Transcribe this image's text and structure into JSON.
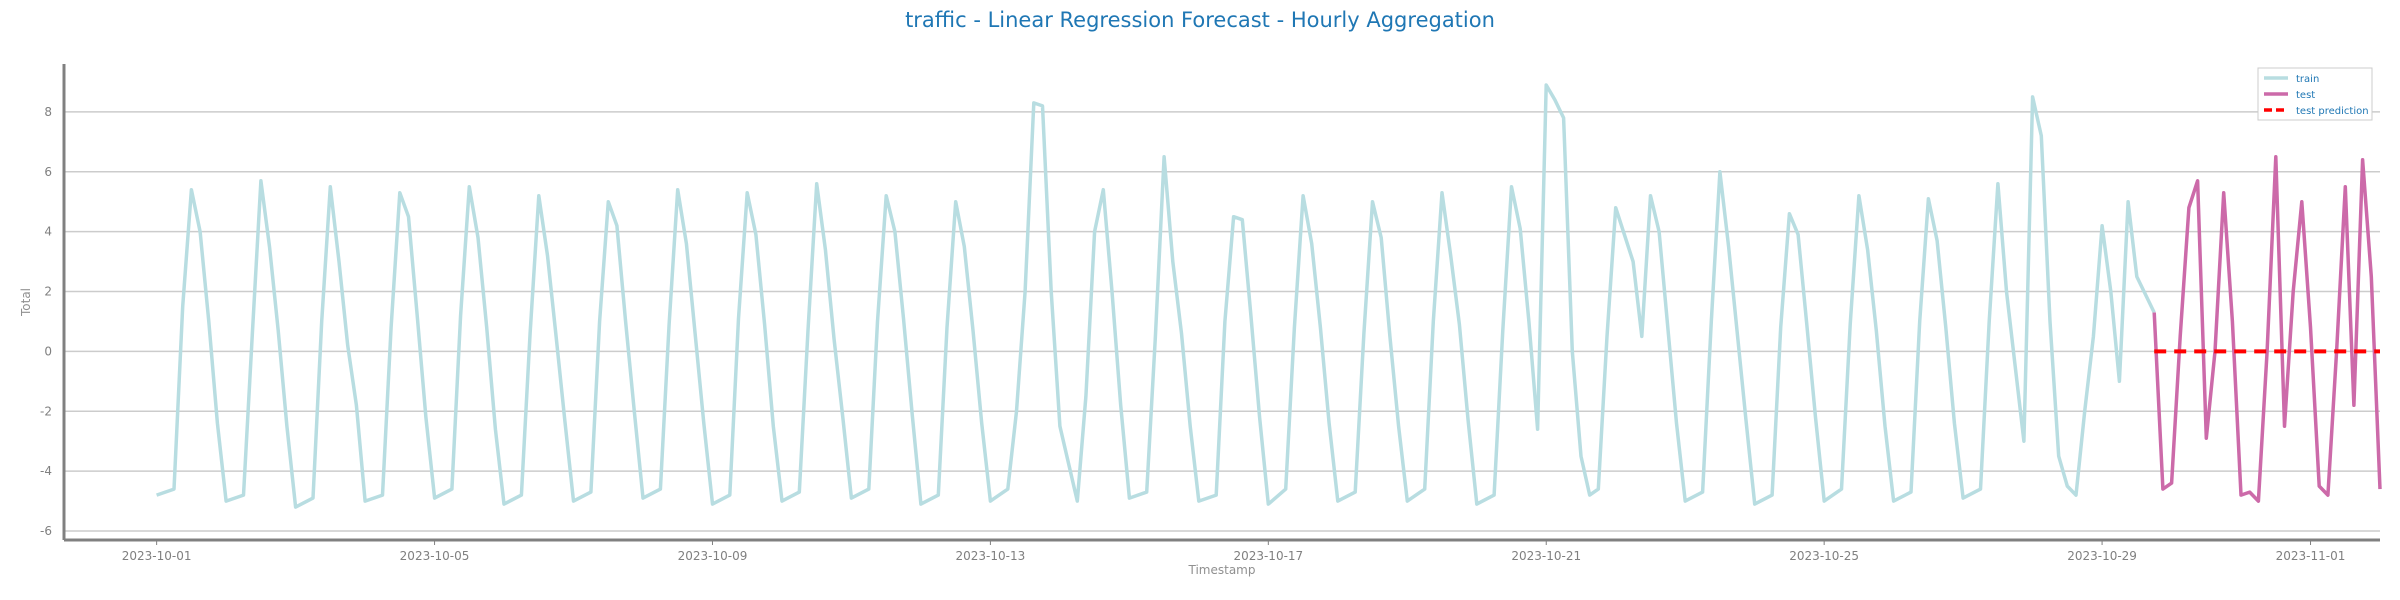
{
  "chart_data": {
    "type": "line",
    "title": "traffic - Linear Regression Forecast - Hourly Aggregation",
    "xlabel": "Timestamp",
    "ylabel": "Total",
    "xlim": [
      "2023-09-29T16:00",
      "2023-11-02T00:00"
    ],
    "ylim": [
      -6.3,
      9.6
    ],
    "grid": "horizontal",
    "legend_position": "top-right",
    "x_ticks": [
      "2023-10-01",
      "2023-10-05",
      "2023-10-09",
      "2023-10-13",
      "2023-10-17",
      "2023-10-21",
      "2023-10-25",
      "2023-10-29",
      "2023-11-01"
    ],
    "y_ticks": [
      -6,
      -4,
      -2,
      0,
      2,
      4,
      6,
      8
    ],
    "series": [
      {
        "name": "train",
        "color": "#b8dde1",
        "style": "solid",
        "points": [
          [
            "2023-10-01T00:00",
            -4.8
          ],
          [
            "2023-10-01T06:00",
            -4.6
          ],
          [
            "2023-10-01T09:00",
            1.5
          ],
          [
            "2023-10-01T12:00",
            5.4
          ],
          [
            "2023-10-01T15:00",
            4.0
          ],
          [
            "2023-10-01T18:00",
            1.0
          ],
          [
            "2023-10-01T21:00",
            -2.4
          ],
          [
            "2023-10-02T00:00",
            -5.0
          ],
          [
            "2023-10-02T06:00",
            -4.8
          ],
          [
            "2023-10-02T09:00",
            0.5
          ],
          [
            "2023-10-02T12:00",
            5.7
          ],
          [
            "2023-10-02T15:00",
            3.5
          ],
          [
            "2023-10-02T18:00",
            0.7
          ],
          [
            "2023-10-02T21:00",
            -2.5
          ],
          [
            "2023-10-03T00:00",
            -5.2
          ],
          [
            "2023-10-03T06:00",
            -4.9
          ],
          [
            "2023-10-03T09:00",
            1.0
          ],
          [
            "2023-10-03T12:00",
            5.5
          ],
          [
            "2023-10-03T15:00",
            3.0
          ],
          [
            "2023-10-03T18:00",
            0.2
          ],
          [
            "2023-10-03T21:00",
            -1.8
          ],
          [
            "2023-10-04T00:00",
            -5.0
          ],
          [
            "2023-10-04T06:00",
            -4.8
          ],
          [
            "2023-10-04T09:00",
            0.8
          ],
          [
            "2023-10-04T12:00",
            5.3
          ],
          [
            "2023-10-04T15:00",
            4.5
          ],
          [
            "2023-10-04T18:00",
            1.2
          ],
          [
            "2023-10-04T21:00",
            -2.2
          ],
          [
            "2023-10-05T00:00",
            -4.9
          ],
          [
            "2023-10-05T06:00",
            -4.6
          ],
          [
            "2023-10-05T09:00",
            1.2
          ],
          [
            "2023-10-05T12:00",
            5.5
          ],
          [
            "2023-10-05T15:00",
            3.8
          ],
          [
            "2023-10-05T18:00",
            0.8
          ],
          [
            "2023-10-05T21:00",
            -2.6
          ],
          [
            "2023-10-06T00:00",
            -5.1
          ],
          [
            "2023-10-06T06:00",
            -4.8
          ],
          [
            "2023-10-06T09:00",
            0.6
          ],
          [
            "2023-10-06T12:00",
            5.2
          ],
          [
            "2023-10-06T15:00",
            3.2
          ],
          [
            "2023-10-06T18:00",
            0.5
          ],
          [
            "2023-10-06T21:00",
            -2.3
          ],
          [
            "2023-10-07T00:00",
            -5.0
          ],
          [
            "2023-10-07T06:00",
            -4.7
          ],
          [
            "2023-10-07T09:00",
            1.0
          ],
          [
            "2023-10-07T12:00",
            5.0
          ],
          [
            "2023-10-07T15:00",
            4.2
          ],
          [
            "2023-10-07T18:00",
            1.0
          ],
          [
            "2023-10-07T21:00",
            -2.0
          ],
          [
            "2023-10-08T00:00",
            -4.9
          ],
          [
            "2023-10-08T06:00",
            -4.6
          ],
          [
            "2023-10-08T09:00",
            0.9
          ],
          [
            "2023-10-08T12:00",
            5.4
          ],
          [
            "2023-10-08T15:00",
            3.6
          ],
          [
            "2023-10-08T18:00",
            0.6
          ],
          [
            "2023-10-08T21:00",
            -2.4
          ],
          [
            "2023-10-09T00:00",
            -5.1
          ],
          [
            "2023-10-09T06:00",
            -4.8
          ],
          [
            "2023-10-09T09:00",
            1.1
          ],
          [
            "2023-10-09T12:00",
            5.3
          ],
          [
            "2023-10-09T15:00",
            3.9
          ],
          [
            "2023-10-09T18:00",
            0.9
          ],
          [
            "2023-10-09T21:00",
            -2.5
          ],
          [
            "2023-10-10T00:00",
            -5.0
          ],
          [
            "2023-10-10T06:00",
            -4.7
          ],
          [
            "2023-10-10T09:00",
            0.7
          ],
          [
            "2023-10-10T12:00",
            5.6
          ],
          [
            "2023-10-10T15:00",
            3.4
          ],
          [
            "2023-10-10T18:00",
            0.4
          ],
          [
            "2023-10-10T21:00",
            -2.2
          ],
          [
            "2023-10-11T00:00",
            -4.9
          ],
          [
            "2023-10-11T06:00",
            -4.6
          ],
          [
            "2023-10-11T09:00",
            1.0
          ],
          [
            "2023-10-11T12:00",
            5.2
          ],
          [
            "2023-10-11T15:00",
            4.0
          ],
          [
            "2023-10-11T18:00",
            1.1
          ],
          [
            "2023-10-11T21:00",
            -2.1
          ],
          [
            "2023-10-12T00:00",
            -5.1
          ],
          [
            "2023-10-12T06:00",
            -4.8
          ],
          [
            "2023-10-12T09:00",
            0.8
          ],
          [
            "2023-10-12T12:00",
            5.0
          ],
          [
            "2023-10-12T15:00",
            3.5
          ],
          [
            "2023-10-12T18:00",
            0.7
          ],
          [
            "2023-10-12T21:00",
            -2.4
          ],
          [
            "2023-10-13T00:00",
            -5.0
          ],
          [
            "2023-10-13T06:00",
            -4.6
          ],
          [
            "2023-10-13T09:00",
            -2.0
          ],
          [
            "2023-10-13T12:00",
            2.0
          ],
          [
            "2023-10-13T15:00",
            8.3
          ],
          [
            "2023-10-13T18:00",
            8.2
          ],
          [
            "2023-10-13T21:00",
            2.0
          ],
          [
            "2023-10-14T00:00",
            -2.5
          ],
          [
            "2023-10-14T06:00",
            -5.0
          ],
          [
            "2023-10-14T09:00",
            -1.5
          ],
          [
            "2023-10-14T12:00",
            4.0
          ],
          [
            "2023-10-14T15:00",
            5.4
          ],
          [
            "2023-10-14T18:00",
            2.0
          ],
          [
            "2023-10-14T21:00",
            -1.8
          ],
          [
            "2023-10-15T00:00",
            -4.9
          ],
          [
            "2023-10-15T06:00",
            -4.7
          ],
          [
            "2023-10-15T09:00",
            0.5
          ],
          [
            "2023-10-15T12:00",
            6.5
          ],
          [
            "2023-10-15T15:00",
            3.0
          ],
          [
            "2023-10-15T18:00",
            0.6
          ],
          [
            "2023-10-15T21:00",
            -2.5
          ],
          [
            "2023-10-16T00:00",
            -5.0
          ],
          [
            "2023-10-16T06:00",
            -4.8
          ],
          [
            "2023-10-16T09:00",
            1.0
          ],
          [
            "2023-10-16T12:00",
            4.5
          ],
          [
            "2023-10-16T15:00",
            4.4
          ],
          [
            "2023-10-16T18:00",
            1.2
          ],
          [
            "2023-10-16T21:00",
            -2.2
          ],
          [
            "2023-10-17T00:00",
            -5.1
          ],
          [
            "2023-10-17T06:00",
            -4.6
          ],
          [
            "2023-10-17T09:00",
            0.8
          ],
          [
            "2023-10-17T12:00",
            5.2
          ],
          [
            "2023-10-17T15:00",
            3.6
          ],
          [
            "2023-10-17T18:00",
            0.8
          ],
          [
            "2023-10-17T21:00",
            -2.4
          ],
          [
            "2023-10-18T00:00",
            -5.0
          ],
          [
            "2023-10-18T06:00",
            -4.7
          ],
          [
            "2023-10-18T09:00",
            0.6
          ],
          [
            "2023-10-18T12:00",
            5.0
          ],
          [
            "2023-10-18T15:00",
            3.8
          ],
          [
            "2023-10-18T18:00",
            0.5
          ],
          [
            "2023-10-18T21:00",
            -2.5
          ],
          [
            "2023-10-19T00:00",
            -5.0
          ],
          [
            "2023-10-19T06:00",
            -4.6
          ],
          [
            "2023-10-19T09:00",
            1.0
          ],
          [
            "2023-10-19T12:00",
            5.3
          ],
          [
            "2023-10-19T15:00",
            3.2
          ],
          [
            "2023-10-19T18:00",
            0.9
          ],
          [
            "2023-10-19T21:00",
            -2.3
          ],
          [
            "2023-10-20T00:00",
            -5.1
          ],
          [
            "2023-10-20T06:00",
            -4.8
          ],
          [
            "2023-10-20T09:00",
            0.7
          ],
          [
            "2023-10-20T12:00",
            5.5
          ],
          [
            "2023-10-20T15:00",
            4.1
          ],
          [
            "2023-10-20T18:00",
            1.0
          ],
          [
            "2023-10-20T21:00",
            -2.6
          ],
          [
            "2023-10-21T00:00",
            8.9
          ],
          [
            "2023-10-21T03:00",
            8.4
          ],
          [
            "2023-10-21T06:00",
            7.8
          ],
          [
            "2023-10-21T09:00",
            0.0
          ],
          [
            "2023-10-21T12:00",
            -3.5
          ],
          [
            "2023-10-21T15:00",
            -4.8
          ],
          [
            "2023-10-21T18:00",
            -4.6
          ],
          [
            "2023-10-21T21:00",
            0.5
          ],
          [
            "2023-10-22T00:00",
            4.8
          ],
          [
            "2023-10-22T06:00",
            3.0
          ],
          [
            "2023-10-22T09:00",
            0.5
          ],
          [
            "2023-10-22T12:00",
            5.2
          ],
          [
            "2023-10-22T15:00",
            4.0
          ],
          [
            "2023-10-22T18:00",
            0.8
          ],
          [
            "2023-10-22T21:00",
            -2.4
          ],
          [
            "2023-10-23T00:00",
            -5.0
          ],
          [
            "2023-10-23T06:00",
            -4.7
          ],
          [
            "2023-10-23T09:00",
            1.0
          ],
          [
            "2023-10-23T12:00",
            6.0
          ],
          [
            "2023-10-23T15:00",
            3.5
          ],
          [
            "2023-10-23T18:00",
            0.6
          ],
          [
            "2023-10-23T21:00",
            -2.3
          ],
          [
            "2023-10-24T00:00",
            -5.1
          ],
          [
            "2023-10-24T06:00",
            -4.8
          ],
          [
            "2023-10-24T09:00",
            0.8
          ],
          [
            "2023-10-24T12:00",
            4.6
          ],
          [
            "2023-10-24T15:00",
            3.9
          ],
          [
            "2023-10-24T18:00",
            0.9
          ],
          [
            "2023-10-24T21:00",
            -2.2
          ],
          [
            "2023-10-25T00:00",
            -5.0
          ],
          [
            "2023-10-25T06:00",
            -4.6
          ],
          [
            "2023-10-25T09:00",
            0.9
          ],
          [
            "2023-10-25T12:00",
            5.2
          ],
          [
            "2023-10-25T15:00",
            3.4
          ],
          [
            "2023-10-25T18:00",
            0.7
          ],
          [
            "2023-10-25T21:00",
            -2.5
          ],
          [
            "2023-10-26T00:00",
            -5.0
          ],
          [
            "2023-10-26T06:00",
            -4.7
          ],
          [
            "2023-10-26T09:00",
            1.0
          ],
          [
            "2023-10-26T12:00",
            5.1
          ],
          [
            "2023-10-26T15:00",
            3.7
          ],
          [
            "2023-10-26T18:00",
            0.8
          ],
          [
            "2023-10-26T21:00",
            -2.4
          ],
          [
            "2023-10-27T00:00",
            -4.9
          ],
          [
            "2023-10-27T06:00",
            -4.6
          ],
          [
            "2023-10-27T09:00",
            1.0
          ],
          [
            "2023-10-27T12:00",
            5.6
          ],
          [
            "2023-10-27T15:00",
            2.0
          ],
          [
            "2023-10-27T18:00",
            -0.5
          ],
          [
            "2023-10-27T21:00",
            -3.0
          ],
          [
            "2023-10-28T00:00",
            8.5
          ],
          [
            "2023-10-28T03:00",
            7.2
          ],
          [
            "2023-10-28T06:00",
            1.0
          ],
          [
            "2023-10-28T09:00",
            -3.5
          ],
          [
            "2023-10-28T12:00",
            -4.5
          ],
          [
            "2023-10-28T15:00",
            -4.8
          ],
          [
            "2023-10-28T18:00",
            -2.0
          ],
          [
            "2023-10-28T21:00",
            0.5
          ],
          [
            "2023-10-29T00:00",
            4.2
          ],
          [
            "2023-10-29T03:00",
            2.0
          ],
          [
            "2023-10-29T06:00",
            -1.0
          ],
          [
            "2023-10-29T09:00",
            5.0
          ],
          [
            "2023-10-29T12:00",
            2.5
          ],
          [
            "2023-10-29T18:00",
            1.3
          ]
        ]
      },
      {
        "name": "test",
        "color": "#cc6aa9",
        "style": "solid",
        "points": [
          [
            "2023-10-29T18:00",
            1.3
          ],
          [
            "2023-10-29T21:00",
            -4.6
          ],
          [
            "2023-10-30T00:00",
            -4.4
          ],
          [
            "2023-10-30T03:00",
            0.5
          ],
          [
            "2023-10-30T06:00",
            4.8
          ],
          [
            "2023-10-30T09:00",
            5.7
          ],
          [
            "2023-10-30T12:00",
            -2.9
          ],
          [
            "2023-10-30T15:00",
            0.0
          ],
          [
            "2023-10-30T18:00",
            5.3
          ],
          [
            "2023-10-30T21:00",
            1.0
          ],
          [
            "2023-10-31T00:00",
            -4.8
          ],
          [
            "2023-10-31T03:00",
            -4.7
          ],
          [
            "2023-10-31T06:00",
            -5.0
          ],
          [
            "2023-10-31T09:00",
            0.0
          ],
          [
            "2023-10-31T12:00",
            6.5
          ],
          [
            "2023-10-31T15:00",
            -2.5
          ],
          [
            "2023-10-31T18:00",
            2.0
          ],
          [
            "2023-10-31T21:00",
            5.0
          ],
          [
            "2023-11-01T00:00",
            0.8
          ],
          [
            "2023-11-01T03:00",
            -4.5
          ],
          [
            "2023-11-01T06:00",
            -4.8
          ],
          [
            "2023-11-01T09:00",
            0.0
          ],
          [
            "2023-11-01T12:00",
            5.5
          ],
          [
            "2023-11-01T15:00",
            -1.8
          ],
          [
            "2023-11-01T18:00",
            6.4
          ],
          [
            "2023-11-01T21:00",
            2.5
          ],
          [
            "2023-11-02T00:00",
            -4.6
          ]
        ]
      },
      {
        "name": "test prediction",
        "color": "#ff0000",
        "style": "dashed",
        "points": [
          [
            "2023-10-29T18:00",
            0.0
          ],
          [
            "2023-11-02T00:00",
            0.0
          ]
        ]
      }
    ]
  }
}
